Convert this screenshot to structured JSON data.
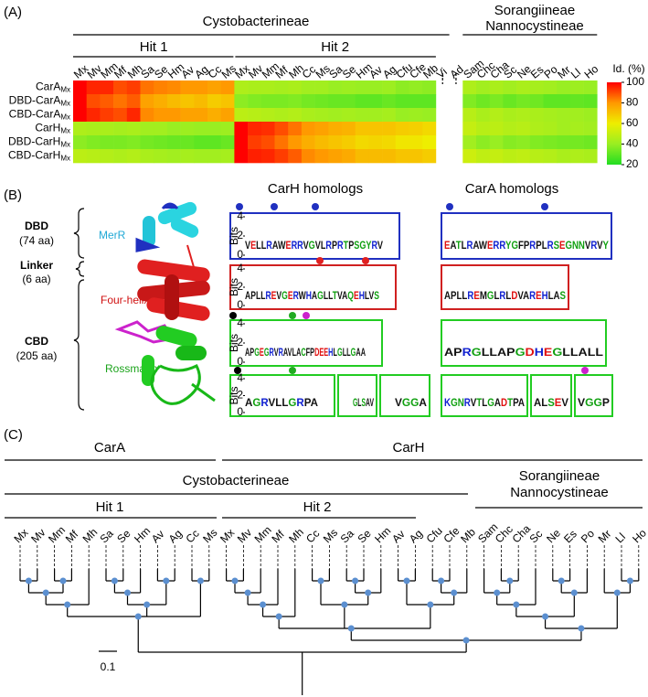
{
  "chart_data": {
    "type": "heatmap",
    "group_labels": [
      "Cystobacterineae",
      "Sorangiineae",
      "Nannocystineae"
    ],
    "hit_labels": [
      "Hit 1",
      "Hit 2"
    ],
    "columns": [
      "Mx",
      "Mv",
      "Mm",
      "Mf",
      "Mh",
      "Sa",
      "Se",
      "Hm",
      "Av",
      "Ag",
      "Cc",
      "Ms",
      "Mx",
      "Mv",
      "Mm",
      "Mf",
      "Mh",
      "Cc",
      "Ms",
      "Sa",
      "Se",
      "Hm",
      "Av",
      "Ag",
      "Cfu",
      "Cfe",
      "Mb",
      "Vi",
      "Ad",
      "Sam",
      "Chc",
      "Cha",
      "Sc",
      "Ne",
      "Es",
      "Po",
      "Mr",
      "Ll",
      "Ho"
    ],
    "rows": [
      {
        "name": "CarA",
        "sub": "Mx"
      },
      {
        "name": "DBD-CarA",
        "sub": "Mx"
      },
      {
        "name": "CBD-CarA",
        "sub": "Mx"
      },
      {
        "name": "CarH",
        "sub": "Mx"
      },
      {
        "name": "DBD-CarH",
        "sub": "Mx"
      },
      {
        "name": "CBD-CarH",
        "sub": "Mx"
      }
    ],
    "values": [
      [
        100,
        95,
        95,
        90,
        92,
        85,
        83,
        82,
        80,
        80,
        78,
        80,
        45,
        44,
        44,
        43,
        44,
        42,
        42,
        40,
        41,
        40,
        40,
        41,
        38,
        39,
        38,
        null,
        null,
        45,
        42,
        44,
        42,
        44,
        43,
        42,
        40,
        41,
        40
      ],
      [
        100,
        90,
        88,
        85,
        88,
        78,
        75,
        72,
        70,
        72,
        68,
        70,
        38,
        36,
        35,
        35,
        36,
        34,
        33,
        32,
        32,
        30,
        30,
        32,
        30,
        30,
        30,
        null,
        null,
        36,
        33,
        35,
        32,
        34,
        33,
        30,
        30,
        31,
        30
      ],
      [
        100,
        95,
        92,
        90,
        95,
        82,
        80,
        80,
        78,
        78,
        75,
        78,
        48,
        47,
        46,
        45,
        46,
        44,
        43,
        42,
        43,
        42,
        42,
        43,
        40,
        41,
        40,
        null,
        null,
        47,
        44,
        46,
        44,
        45,
        44,
        43,
        42,
        42,
        41
      ],
      [
        45,
        44,
        44,
        43,
        44,
        42,
        42,
        40,
        41,
        40,
        40,
        41,
        100,
        95,
        94,
        90,
        85,
        80,
        78,
        75,
        74,
        70,
        70,
        70,
        68,
        67,
        65,
        null,
        null,
        50,
        47,
        48,
        46,
        47,
        45,
        44,
        42,
        43,
        42
      ],
      [
        38,
        36,
        35,
        35,
        36,
        34,
        33,
        32,
        32,
        30,
        30,
        32,
        100,
        92,
        90,
        85,
        80,
        75,
        72,
        70,
        68,
        65,
        66,
        65,
        62,
        62,
        60,
        null,
        null,
        42,
        38,
        40,
        37,
        38,
        36,
        35,
        34,
        34,
        33
      ],
      [
        48,
        47,
        46,
        45,
        46,
        44,
        43,
        42,
        43,
        42,
        42,
        43,
        100,
        96,
        95,
        92,
        88,
        82,
        80,
        78,
        76,
        72,
        72,
        72,
        70,
        70,
        68,
        null,
        null,
        52,
        49,
        50,
        48,
        49,
        47,
        46,
        44,
        45,
        44
      ]
    ],
    "colorbar_label": "Id. (%)",
    "clim": [
      20,
      100
    ],
    "cticks": [
      20,
      40,
      60,
      80,
      100
    ],
    "colorscale": [
      "#22dd22",
      "#99ee22",
      "#eeee00",
      "#ff9900",
      "#ff0000"
    ]
  },
  "panels": {
    "a": "(A)",
    "b": "(B)",
    "c": "(C)"
  },
  "structure": {
    "dbd": "DBD",
    "dbd_len": "(74 aa)",
    "linker": "Linker",
    "linker_len": "(6 aa)",
    "cbd": "CBD",
    "cbd_len": "(205 aa)",
    "merr": "MerR",
    "fourhelix": "Four-helix",
    "rossmann": "Rossmann"
  },
  "logos": {
    "bits_label": "Bits",
    "bits_ticks": [
      0,
      2,
      4
    ],
    "carh": {
      "title": "CarH homologs",
      "rows": [
        [
          "VELLRAWERRVGVLRPRTPSGYRV"
        ],
        [
          "APLLREVGERWHAGLLTVAQEHLVS"
        ],
        [
          "APGEGRVRAVLACFPDEEHLGLLGAA"
        ],
        [
          "AGRVLLGRPA",
          "GLSAV",
          "VGGA"
        ]
      ]
    },
    "cara": {
      "title": "CarA homologs",
      "rows": [
        [
          "EATLRAWERRYGFPRPLRSEGNNVRVY"
        ],
        [
          "APLLREMGLRLDVAREHLAS"
        ],
        [
          "APRGLLAPGDHEGLLALL"
        ],
        [
          "KGNRVTLGADTPA",
          "ALSEV",
          "VGGP"
        ]
      ]
    }
  },
  "tree": {
    "clades": [
      "CarA",
      "CarH"
    ],
    "groups": [
      "Cystobacterineae",
      "Sorangiineae",
      "Nannocystineae"
    ],
    "hits": [
      "Hit 1",
      "Hit 2"
    ],
    "leaves": [
      "Mx",
      "Mv",
      "Mm",
      "Mf",
      "Mh",
      "Sa",
      "Se",
      "Hm",
      "Av",
      "Ag",
      "Cc",
      "Ms",
      "Mx",
      "Mv",
      "Mm",
      "Mf",
      "Mh",
      "Cc",
      "Ms",
      "Sa",
      "Se",
      "Hm",
      "Av",
      "Ag",
      "Cfu",
      "Cfe",
      "Mb",
      "Sam",
      "Chc",
      "Cha",
      "Sc",
      "Ne",
      "Es",
      "Po",
      "Mr",
      "Ll",
      "Ho"
    ],
    "scale": "0.1"
  }
}
